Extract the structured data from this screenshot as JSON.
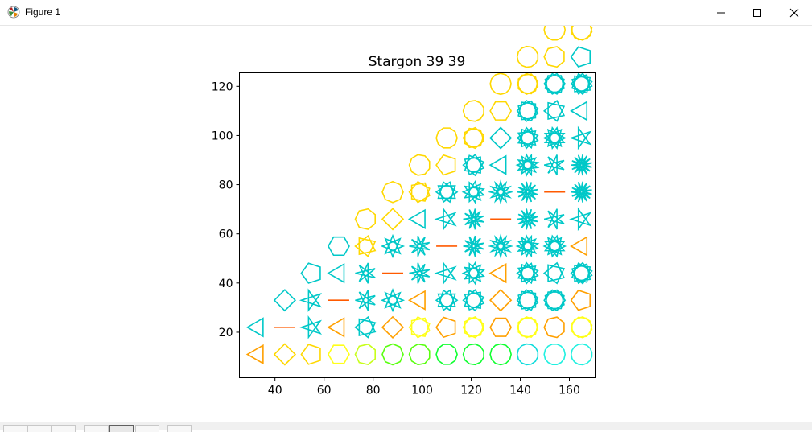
{
  "window": {
    "title": "Figure 1",
    "minimize_icon": "minimize-icon",
    "maximize_icon": "maximize-icon",
    "close_icon": "close-icon"
  },
  "chart_data": {
    "type": "scatter",
    "title": "Stargon 39 39",
    "xlabel": "",
    "ylabel": "",
    "xlim": [
      25.5,
      170.5
    ],
    "ylim": [
      1.5,
      125.5
    ],
    "xticks": [
      40,
      60,
      80,
      100,
      120,
      140,
      160
    ],
    "yticks": [
      20,
      40,
      60,
      80,
      100,
      120
    ],
    "grid": false,
    "marker_grid": {
      "x_start": 33,
      "x_step": 11,
      "columns": 13,
      "y_start": 11,
      "y_step": 11,
      "rows_per_column": [
        2,
        3,
        4,
        5,
        6,
        7,
        8,
        9,
        10,
        11,
        12,
        13,
        13
      ],
      "description": "column c has n = c+3 vertices; row r uses step k = r+1 (star polygon {n/k})"
    },
    "color_scale": [
      "#ff5a00",
      "#ffa000",
      "#ffd800",
      "#ffff1a",
      "#c8ff1a",
      "#5aff10",
      "#10ff30",
      "#00c8c8",
      "#10dcdc",
      "#20f0e0"
    ]
  }
}
